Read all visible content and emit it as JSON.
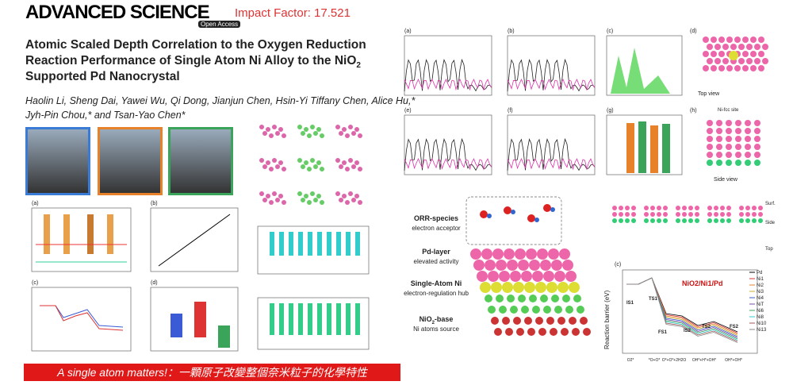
{
  "header": {
    "journal": "ADVANCED SCIENCE",
    "impact": "Impact Factor: 17.521",
    "badge": "Open Access"
  },
  "title": {
    "line1": "Atomic Scaled Depth Correlation to the Oxygen Reduction",
    "line2": "Reaction Performance of Single Atom Ni Alloy to the NiO",
    "line2_sub": "2",
    "line3": "Supported Pd Nanocrystal"
  },
  "authors": {
    "line1": "Haolin Li, Sheng Dai, Yawei Wu, Qi Dong, Jianjun Chen, Hsin-Yi Tiffany Chen, Alice Hu,*",
    "line2": "Jyh-Pin Chou,* and Tsan-Yao Chen*"
  },
  "banner": "A single atom matters!：一顆原子改變整個奈米粒子的化學特性",
  "panels_left": [
    "(a)",
    "(b)",
    "(c)",
    "(d)"
  ],
  "panels_dos": [
    "(a)",
    "(b)",
    "(c)",
    "(d)",
    "(e)",
    "(f)",
    "(g)",
    "(h)"
  ],
  "structure_views": {
    "top": "Top view",
    "side": "Side view",
    "site": "Ni-fcc site",
    "surf": "Surf.",
    "side_short": "Side",
    "top_short": "Top"
  },
  "layers": [
    {
      "name": "ORR-species",
      "role": "electron acceptor"
    },
    {
      "name": "Pd-layer",
      "role": "elevated activity"
    },
    {
      "name": "Single-Atom Ni",
      "role": "electron-regulation hub"
    },
    {
      "name": "NiO",
      "name_sub": "2",
      "name_end": "-base",
      "role": "Ni atoms source"
    }
  ],
  "barrier": {
    "panel": "(c)",
    "ylabel": "Reaction barrier (eV)",
    "annotation": "NiO2/Ni1/Pd",
    "states": [
      "IS1",
      "TS1",
      "FS1",
      "IS2",
      "TS2",
      "FS2"
    ],
    "xlabels": [
      "O2*",
      "*O+O*",
      "O*+O*+2H2O",
      "OH*+H*+OH*",
      "OH*+OH*"
    ],
    "legend": [
      "Pd",
      "Ni1",
      "Ni2",
      "Ni3",
      "Ni4",
      "NiT",
      "Ni6",
      "Ni8",
      "Ni10",
      "Ni13"
    ]
  }
}
